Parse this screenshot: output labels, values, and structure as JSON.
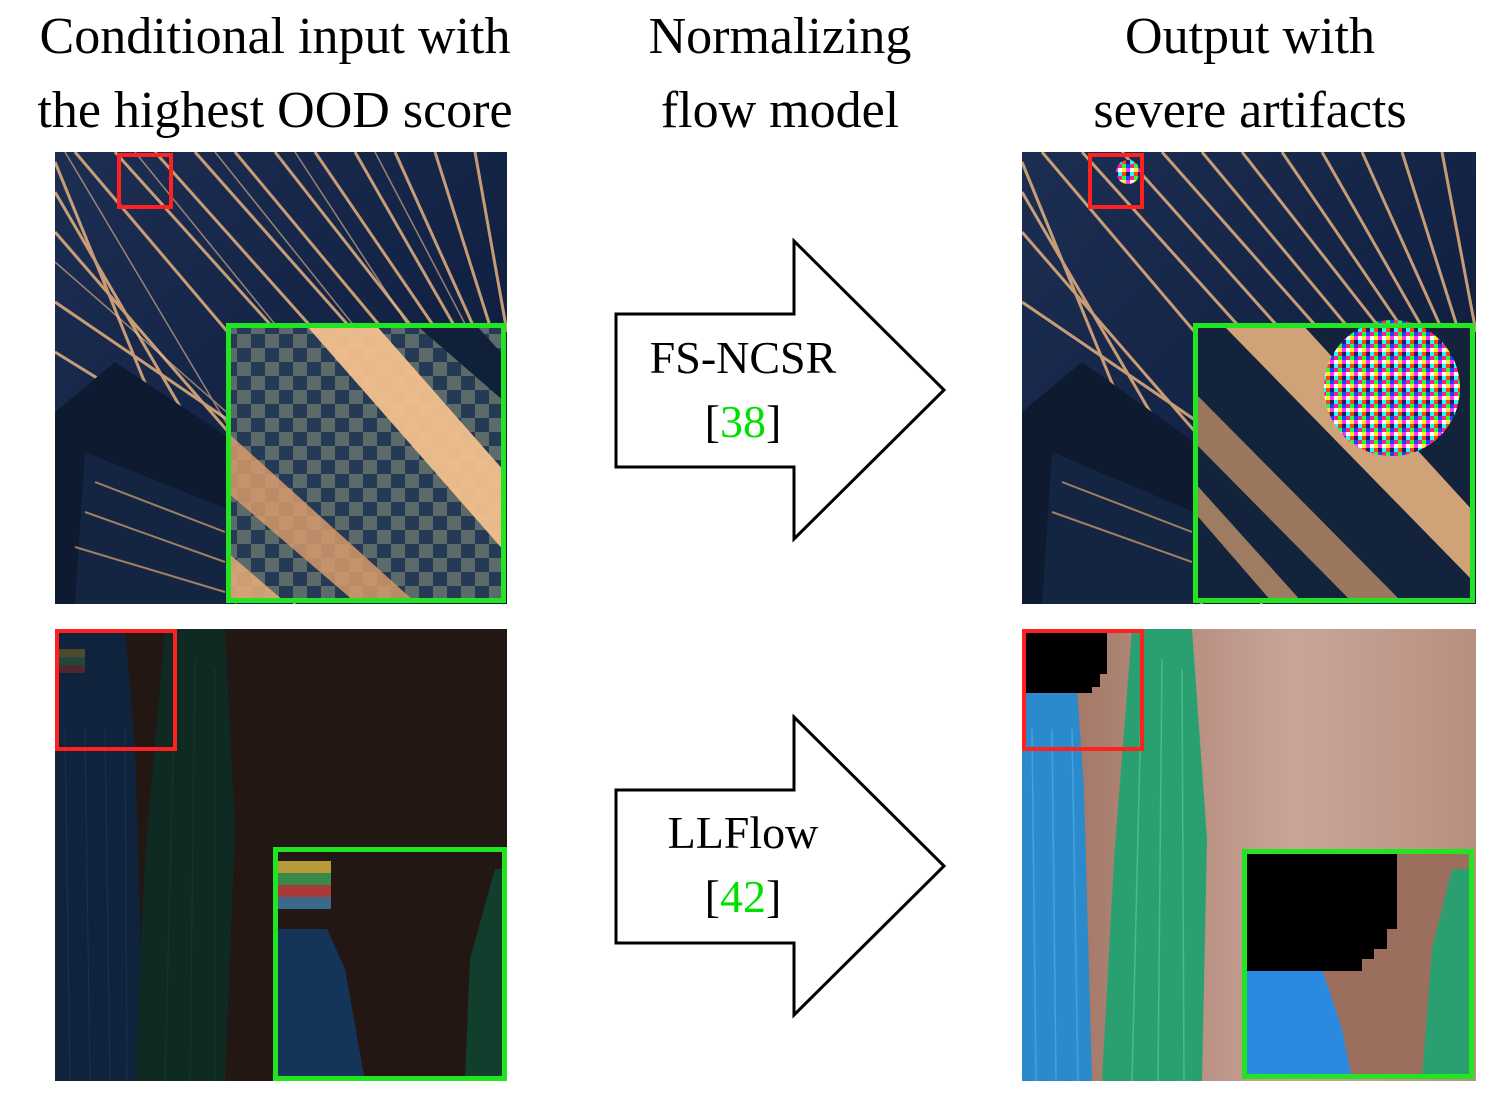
{
  "headers": {
    "left": [
      "Conditional input with",
      "the highest OOD score"
    ],
    "middle": [
      "Normalizing",
      "flow model"
    ],
    "right": [
      "Output with",
      "severe artifacts"
    ]
  },
  "rows": [
    {
      "model": "FS-NCSR",
      "cite_open": "[",
      "cite_num": "38",
      "cite_close": "]"
    },
    {
      "model": "LLFlow",
      "cite_open": "[",
      "cite_num": "42",
      "cite_close": "]"
    }
  ],
  "colors": {
    "zoom_box": "#ff2020",
    "inset_box": "#22e522",
    "citation": "#00e000"
  }
}
